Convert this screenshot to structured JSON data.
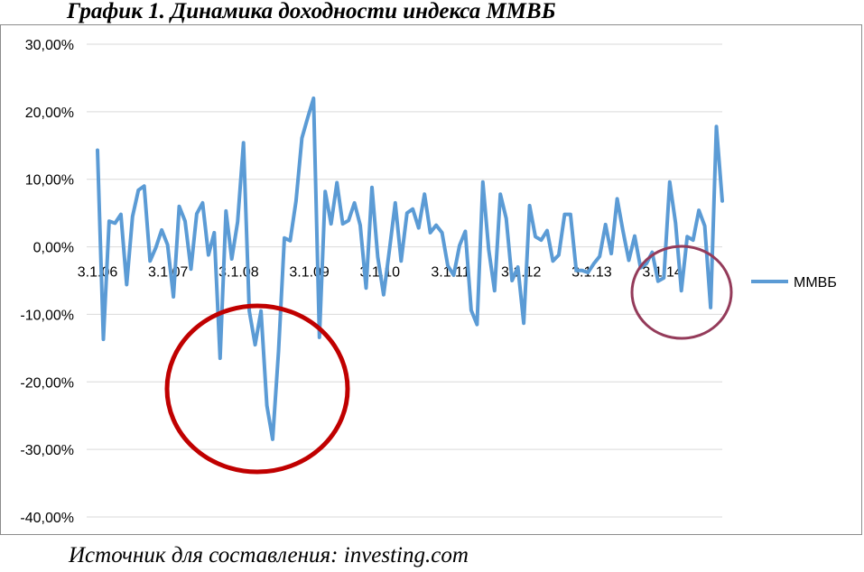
{
  "title": "График 1. Динамика доходности индекса ММВБ",
  "source": "Источник для составления: investing.com",
  "colors": {
    "series": "#5b9bd5",
    "grid": "#d9d9d9",
    "big_circle": "#c00000",
    "small_circle": "#943b5a"
  },
  "chart_data": {
    "type": "line",
    "title": "",
    "xlabel": "",
    "ylabel": "",
    "ylim": [
      -40,
      30
    ],
    "yticks": [
      30,
      20,
      10,
      0,
      -10,
      -20,
      -30,
      -40
    ],
    "ytick_labels": [
      "30,00%",
      "20,00%",
      "10,00%",
      "0,00%",
      "-10,00%",
      "-20,00%",
      "-30,00%",
      "-40,00%"
    ],
    "xtick_labels": [
      "3.1.06",
      "3.1.07",
      "3.1.08",
      "3.1.09",
      "3.1.10",
      "3.1.11",
      "3.1.12",
      "3.1.13",
      "3.1.14"
    ],
    "grid": true,
    "legend_position": "right",
    "annotations": [
      "circle around 2008 crisis lows",
      "circle around 2014 dips"
    ],
    "series": [
      {
        "name": "ММВБ",
        "values": [
          14.3,
          -13.7,
          3.8,
          3.5,
          4.8,
          -5.6,
          4.5,
          8.4,
          9.0,
          -2.1,
          -0.1,
          2.5,
          0.3,
          -7.4,
          6.0,
          3.8,
          -3.3,
          4.9,
          6.5,
          -1.2,
          2.1,
          -16.5,
          5.3,
          -1.8,
          3.7,
          15.4,
          -9.5,
          -14.5,
          -9.5,
          -23.5,
          -28.5,
          -15.5,
          1.3,
          0.9,
          6.8,
          16.1,
          19.1,
          22.0,
          -13.4,
          8.2,
          3.4,
          9.5,
          3.4,
          3.9,
          6.5,
          3.2,
          -6.1,
          8.8,
          -1.5,
          -7.1,
          -0.4,
          6.5,
          -2.1,
          5.0,
          5.6,
          2.8,
          7.8,
          2.1,
          3.2,
          2.1,
          -2.8,
          -4.2,
          0.2,
          2.3,
          -9.4,
          -11.5,
          9.6,
          -0.4,
          -6.5,
          7.8,
          4.2,
          -5.0,
          -3.0,
          -11.3,
          6.1,
          1.5,
          1.0,
          2.4,
          -2.1,
          -1.2,
          4.8,
          4.8,
          -3.5,
          -3.5,
          -3.8,
          -2.5,
          -1.4,
          3.3,
          -1.0,
          7.1,
          2.3,
          -2.0,
          1.6,
          -3.1,
          -2.5,
          -0.8,
          -5.1,
          -4.6,
          9.6,
          3.5,
          -6.5,
          1.5,
          1.0,
          5.4,
          3.1,
          -9.0,
          17.8,
          6.8
        ]
      }
    ]
  }
}
